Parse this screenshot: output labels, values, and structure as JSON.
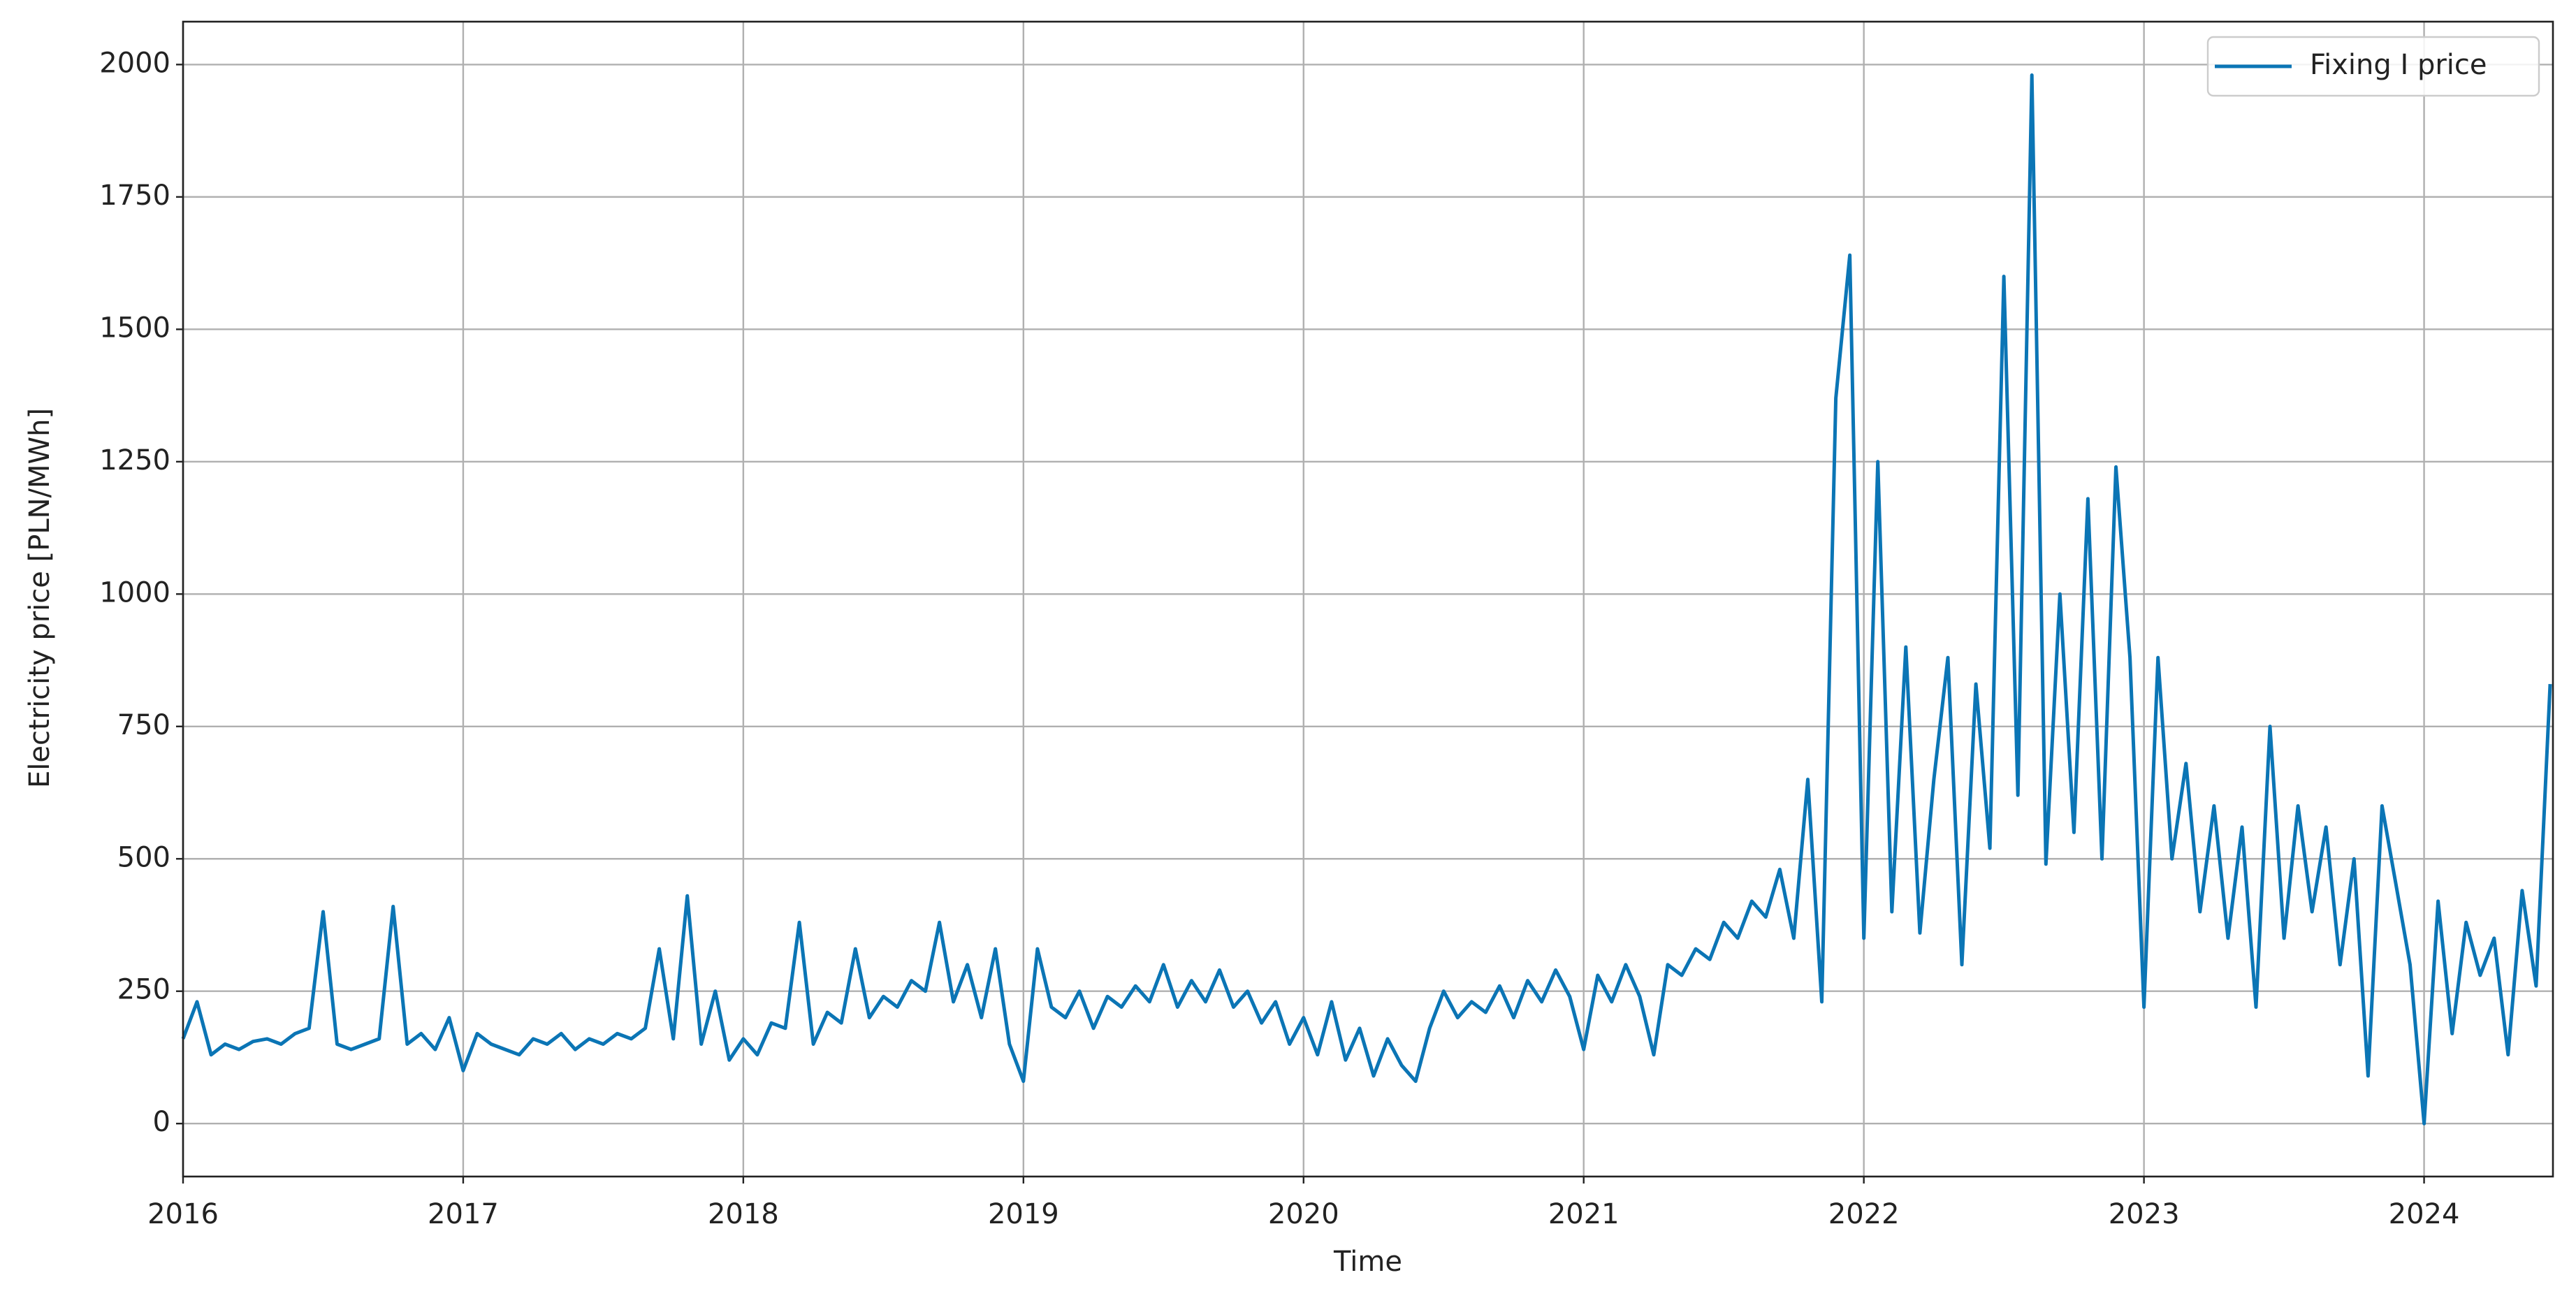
{
  "chart_data": {
    "type": "line",
    "xlabel": "Time",
    "ylabel": "Electricity price [PLN/MWh]",
    "x": [
      2016.0,
      2016.05,
      2016.1,
      2016.15,
      2016.2,
      2016.25,
      2016.3,
      2016.35,
      2016.4,
      2016.45,
      2016.5,
      2016.55,
      2016.6,
      2016.65,
      2016.7,
      2016.75,
      2016.8,
      2016.85,
      2016.9,
      2016.95,
      2017.0,
      2017.05,
      2017.1,
      2017.15,
      2017.2,
      2017.25,
      2017.3,
      2017.35,
      2017.4,
      2017.45,
      2017.5,
      2017.55,
      2017.6,
      2017.65,
      2017.7,
      2017.75,
      2017.8,
      2017.85,
      2017.9,
      2017.95,
      2018.0,
      2018.05,
      2018.1,
      2018.15,
      2018.2,
      2018.25,
      2018.3,
      2018.35,
      2018.4,
      2018.45,
      2018.5,
      2018.55,
      2018.6,
      2018.65,
      2018.7,
      2018.75,
      2018.8,
      2018.85,
      2018.9,
      2018.95,
      2019.0,
      2019.05,
      2019.1,
      2019.15,
      2019.2,
      2019.25,
      2019.3,
      2019.35,
      2019.4,
      2019.45,
      2019.5,
      2019.55,
      2019.6,
      2019.65,
      2019.7,
      2019.75,
      2019.8,
      2019.85,
      2019.9,
      2019.95,
      2020.0,
      2020.05,
      2020.1,
      2020.15,
      2020.2,
      2020.25,
      2020.3,
      2020.35,
      2020.4,
      2020.45,
      2020.5,
      2020.55,
      2020.6,
      2020.65,
      2020.7,
      2020.75,
      2020.8,
      2020.85,
      2020.9,
      2020.95,
      2021.0,
      2021.05,
      2021.1,
      2021.15,
      2021.2,
      2021.25,
      2021.3,
      2021.35,
      2021.4,
      2021.45,
      2021.5,
      2021.55,
      2021.6,
      2021.65,
      2021.7,
      2021.75,
      2021.8,
      2021.85,
      2021.9,
      2021.95,
      2022.0,
      2022.05,
      2022.1,
      2022.15,
      2022.2,
      2022.25,
      2022.3,
      2022.35,
      2022.4,
      2022.45,
      2022.5,
      2022.55,
      2022.6,
      2022.65,
      2022.7,
      2022.75,
      2022.8,
      2022.85,
      2022.9,
      2022.95,
      2023.0,
      2023.05,
      2023.1,
      2023.15,
      2023.2,
      2023.25,
      2023.3,
      2023.35,
      2023.4,
      2023.45,
      2023.5,
      2023.55,
      2023.6,
      2023.65,
      2023.7,
      2023.75,
      2023.8,
      2023.85,
      2023.9,
      2023.95,
      2024.0,
      2024.05,
      2024.1,
      2024.15,
      2024.2,
      2024.25,
      2024.3,
      2024.35,
      2024.4,
      2024.45
    ],
    "series": [
      {
        "name": "Fixing I price",
        "color": "#0b75b5",
        "values": [
          160,
          230,
          130,
          150,
          140,
          155,
          160,
          150,
          170,
          180,
          400,
          150,
          140,
          150,
          160,
          410,
          150,
          170,
          140,
          200,
          100,
          170,
          150,
          140,
          130,
          160,
          150,
          170,
          140,
          160,
          150,
          170,
          160,
          180,
          330,
          160,
          430,
          150,
          250,
          120,
          160,
          130,
          190,
          180,
          380,
          150,
          210,
          190,
          330,
          200,
          240,
          220,
          270,
          250,
          380,
          230,
          300,
          200,
          330,
          150,
          80,
          330,
          220,
          200,
          250,
          180,
          240,
          220,
          260,
          230,
          300,
          220,
          270,
          230,
          290,
          220,
          250,
          190,
          230,
          150,
          200,
          130,
          230,
          120,
          180,
          90,
          160,
          110,
          80,
          180,
          250,
          200,
          230,
          210,
          260,
          200,
          270,
          230,
          290,
          240,
          140,
          280,
          230,
          300,
          240,
          130,
          300,
          280,
          330,
          310,
          380,
          350,
          420,
          390,
          480,
          350,
          650,
          230,
          1370,
          1640,
          350,
          1250,
          400,
          900,
          360,
          650,
          880,
          300,
          830,
          520,
          1600,
          620,
          1980,
          490,
          1000,
          550,
          1180,
          500,
          1240,
          880,
          220,
          880,
          500,
          680,
          400,
          600,
          350,
          560,
          220,
          750,
          350,
          600,
          400,
          560,
          300,
          500,
          90,
          600,
          450,
          300,
          0,
          420,
          170,
          380,
          280,
          350,
          130,
          440,
          260,
          830
        ]
      }
    ],
    "xlim": [
      2016,
      2024.46
    ],
    "xticks": [
      2016,
      2017,
      2018,
      2019,
      2020,
      2021,
      2022,
      2023,
      2024
    ],
    "ylim": [
      -100,
      2081
    ],
    "yticks": [
      0,
      250,
      500,
      750,
      1000,
      1250,
      1500,
      1750,
      2000
    ],
    "grid": true,
    "legend": "upper right"
  }
}
